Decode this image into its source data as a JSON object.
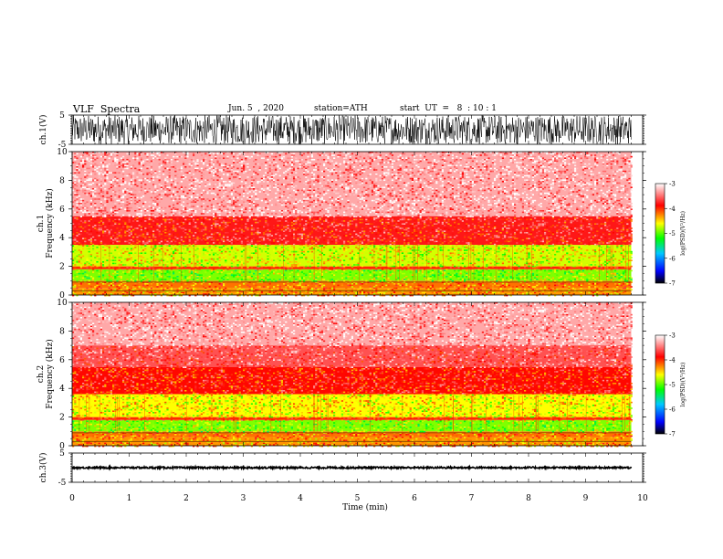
{
  "header": {
    "title": "VLF  Spectra",
    "date": "Jun. 5  , 2020",
    "station": "station=ATH",
    "start": "start  UT  =   8  : 10 : 1"
  },
  "colors": {
    "colormap": [
      "#000000",
      "#0000ff",
      "#00c8ff",
      "#00ff00",
      "#ffff00",
      "#ff0000",
      "#ffffff"
    ]
  },
  "chart_data": [
    {
      "type": "line",
      "panel": "ch1-waveform",
      "ylabel": "ch.1(V)",
      "ylim": [
        -5,
        5
      ],
      "yticks": [
        "5",
        "-5"
      ],
      "xlim": [
        0,
        10
      ],
      "series": [
        {
          "values_range": [
            -5,
            5
          ]
        }
      ]
    },
    {
      "type": "heatmap",
      "panel": "ch1-spectrogram",
      "ylabel": "ch.1\nFrequency  (kHz)",
      "ylim": [
        0,
        10
      ],
      "yticks": [
        "0",
        "2",
        "4",
        "6",
        "8",
        "10"
      ],
      "xlim": [
        0,
        9.8
      ],
      "bands": [
        {
          "from": 0.0,
          "to": 0.5,
          "level": -4.3
        },
        {
          "from": 0.5,
          "to": 1.0,
          "level": -4.2
        },
        {
          "from": 1.0,
          "to": 1.8,
          "level": -4.9
        },
        {
          "from": 1.8,
          "to": 2.0,
          "level": -4.0
        },
        {
          "from": 2.0,
          "to": 3.5,
          "level": -4.7
        },
        {
          "from": 3.5,
          "to": 5.5,
          "level": -3.8
        },
        {
          "from": 5.5,
          "to": 10.0,
          "level": -3.3
        }
      ]
    },
    {
      "type": "heatmap",
      "panel": "ch2-spectrogram",
      "ylabel": "ch.2\nFrequency  (kHz)",
      "ylim": [
        0,
        10
      ],
      "yticks": [
        "0",
        "2",
        "4",
        "6",
        "8",
        "10"
      ],
      "xlim": [
        0,
        9.8
      ],
      "bands": [
        {
          "from": 0.0,
          "to": 0.6,
          "level": -4.3
        },
        {
          "from": 0.6,
          "to": 1.0,
          "level": -4.2
        },
        {
          "from": 1.0,
          "to": 1.8,
          "level": -4.9
        },
        {
          "from": 1.8,
          "to": 2.0,
          "level": -4.0
        },
        {
          "from": 2.0,
          "to": 3.6,
          "level": -4.6
        },
        {
          "from": 3.6,
          "to": 5.5,
          "level": -3.9
        },
        {
          "from": 5.5,
          "to": 7.0,
          "level": -3.6
        },
        {
          "from": 7.0,
          "to": 10.0,
          "level": -3.3
        }
      ]
    },
    {
      "type": "line",
      "panel": "ch3-waveform",
      "ylabel": "ch.3(V)",
      "ylim": [
        -5,
        5
      ],
      "yticks": [
        "5",
        "-5"
      ],
      "xlim": [
        0,
        10
      ],
      "series": [
        {
          "values_range": [
            -0.3,
            0.3
          ]
        }
      ]
    }
  ],
  "xaxis": {
    "label": "Time  (min)",
    "ticks": [
      "0",
      "1",
      "2",
      "3",
      "4",
      "5",
      "6",
      "7",
      "8",
      "9",
      "10"
    ],
    "xlim": [
      0,
      10
    ]
  },
  "colorbar": {
    "label": "log(PSD)(V²/Hz)",
    "ticks": [
      "-3",
      "-4",
      "-5",
      "-6",
      "-7"
    ],
    "range": [
      -7,
      -3
    ]
  }
}
